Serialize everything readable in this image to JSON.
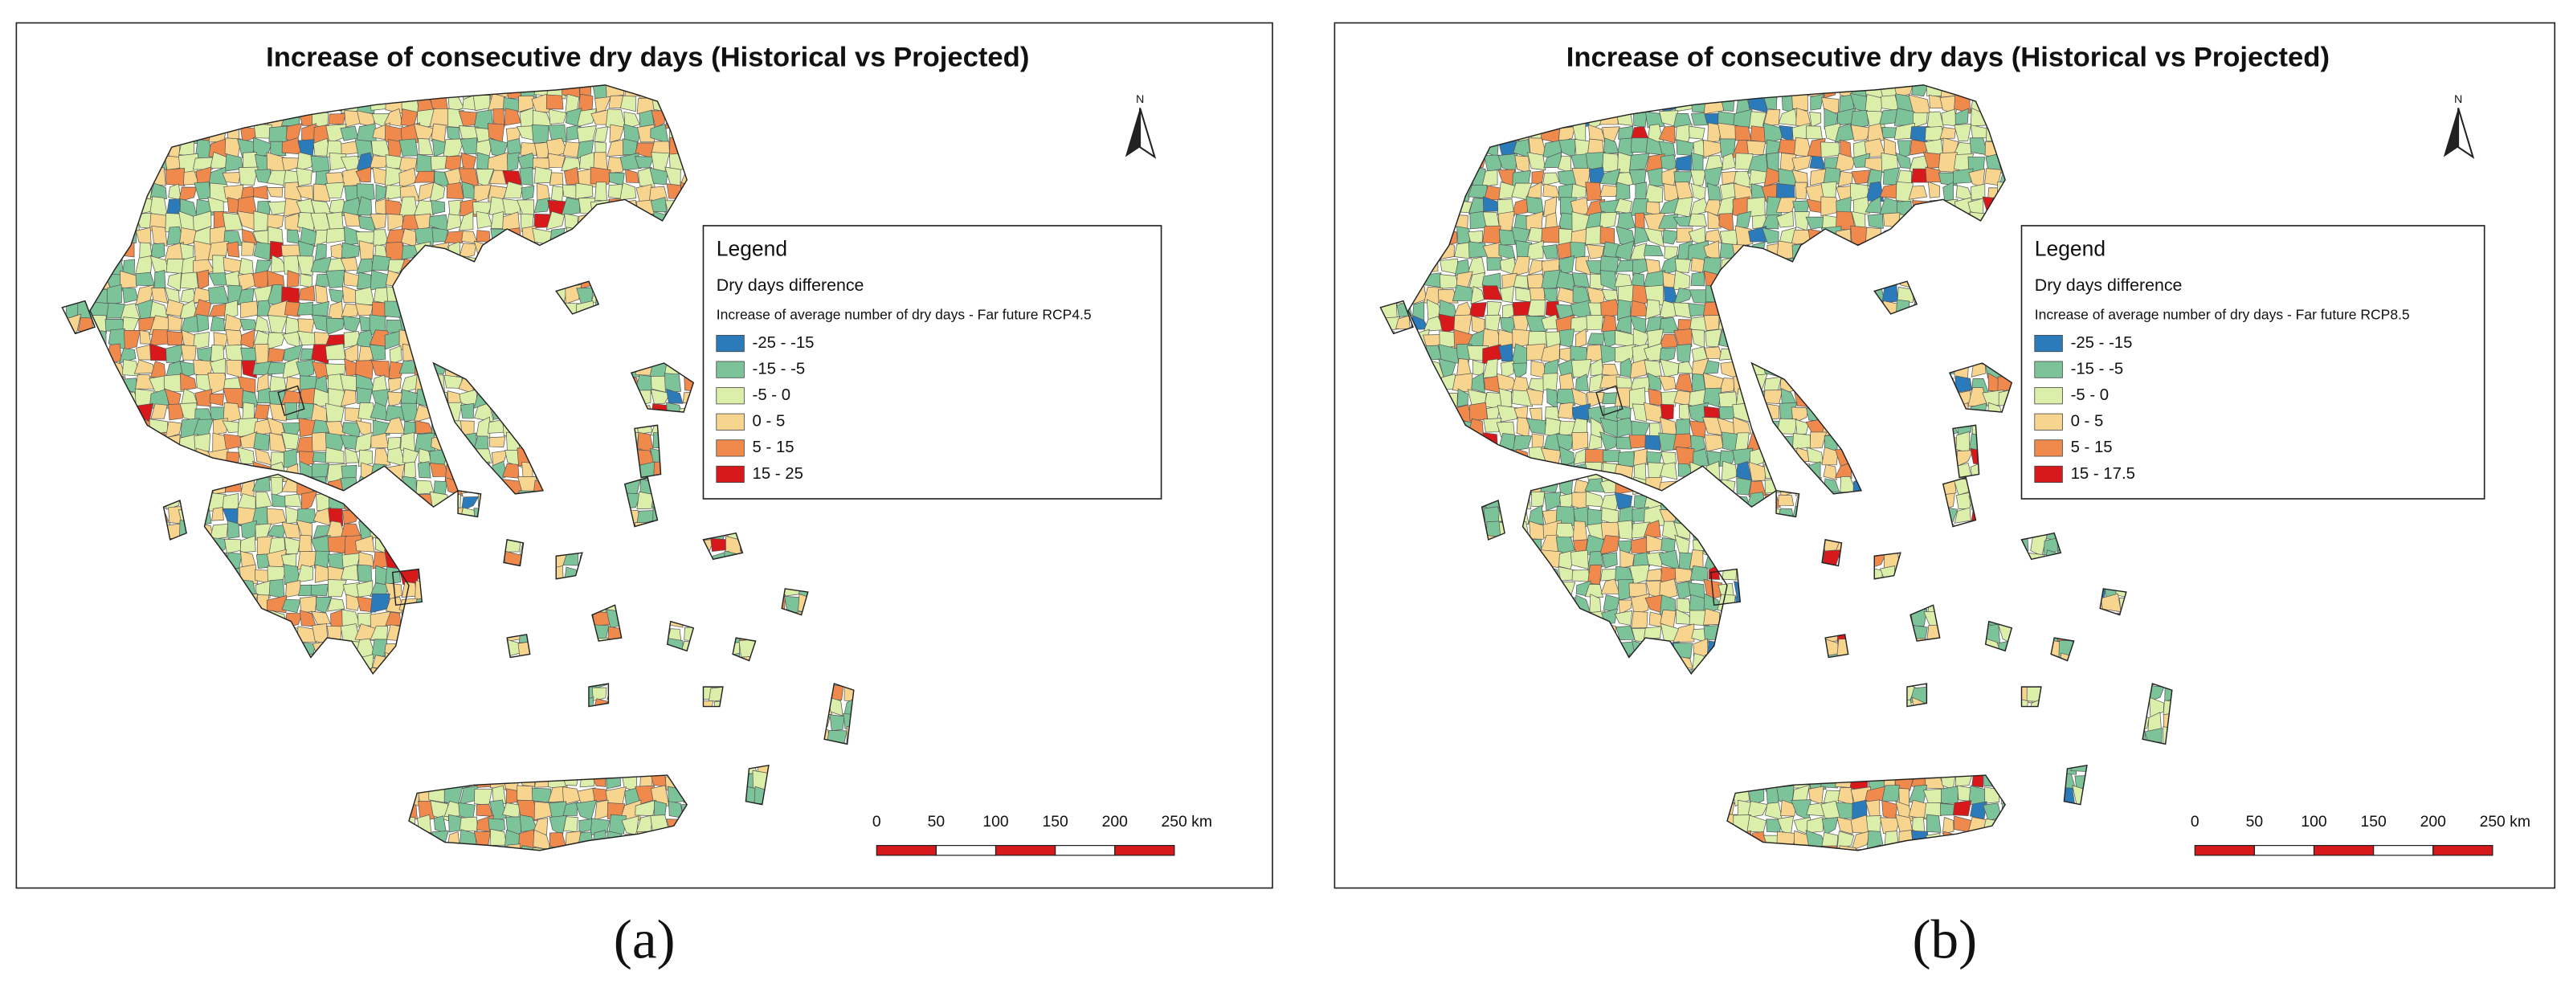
{
  "panels": [
    {
      "title": "Increase of consecutive dry days (Historical vs Projected)",
      "north": "N",
      "legend": {
        "title": "Legend",
        "heading": "Dry days difference",
        "subtitle": "Increase of average number of dry days - Far future RCP4.5",
        "items": [
          {
            "label": "-25 - -15",
            "color": "#2b7bba"
          },
          {
            "label": "-15 - -5",
            "color": "#7cc39a"
          },
          {
            "label": "-5 - 0",
            "color": "#dcefaa"
          },
          {
            "label": "0 - 5",
            "color": "#f8d58e"
          },
          {
            "label": "5 - 15",
            "color": "#ef8a4c"
          },
          {
            "label": "15 - 25",
            "color": "#d7191c"
          }
        ]
      },
      "scale": [
        "0",
        "50",
        "100",
        "150",
        "200",
        "250 km"
      ],
      "caption": "(a)"
    },
    {
      "title": "Increase of consecutive dry days (Historical vs Projected)",
      "north": "N",
      "legend": {
        "title": "Legend",
        "heading": "Dry days difference",
        "subtitle": "Increase of average number of dry days - Far future RCP8.5",
        "items": [
          {
            "label": "-25 - -15",
            "color": "#2b7bba"
          },
          {
            "label": "-15 - -5",
            "color": "#7cc39a"
          },
          {
            "label": "-5 - 0",
            "color": "#dcefaa"
          },
          {
            "label": "0 - 5",
            "color": "#f8d58e"
          },
          {
            "label": "5 - 15",
            "color": "#ef8a4c"
          },
          {
            "label": "15 - 17.5",
            "color": "#d7191c"
          }
        ]
      },
      "scale": [
        "0",
        "50",
        "100",
        "150",
        "200",
        "250 km"
      ],
      "caption": "(b)"
    }
  ]
}
